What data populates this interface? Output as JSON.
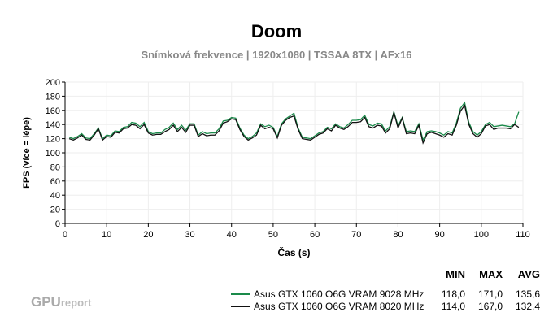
{
  "chart_data": {
    "type": "line",
    "title": "Doom",
    "subtitle": "Snímková frekvence | 1920x1080 | TSSAA 8TX | AFx16",
    "xlabel": "Čas (s)",
    "ylabel": "FPS (více = lépe)",
    "xlim": [
      0,
      110
    ],
    "ylim": [
      0,
      200
    ],
    "xticks": [
      0,
      10,
      20,
      30,
      40,
      50,
      60,
      70,
      80,
      90,
      100,
      110
    ],
    "yticks": [
      0,
      20,
      40,
      60,
      80,
      100,
      120,
      140,
      160,
      180,
      200
    ],
    "grid": true,
    "legend_placement": "bottom-right",
    "stat_headers": [
      "MIN",
      "MAX",
      "AVG"
    ],
    "series": [
      {
        "name": "Asus GTX 1060 O6G VRAM 9028 MHz",
        "color": "#1a8a4a",
        "min": "118,0",
        "max": "171,0",
        "avg": "135,6",
        "values": [
          122,
          120,
          123,
          127,
          121,
          120,
          127,
          135,
          120,
          125,
          124,
          131,
          130,
          136,
          137,
          143,
          142,
          137,
          143,
          130,
          127,
          128,
          128,
          133,
          136,
          142,
          133,
          139,
          132,
          141,
          141,
          125,
          130,
          127,
          128,
          128,
          134,
          145,
          146,
          150,
          149,
          135,
          125,
          120,
          123,
          128,
          141,
          137,
          139,
          136,
          123,
          141,
          148,
          152,
          156,
          135,
          122,
          121,
          120,
          124,
          128,
          130,
          136,
          134,
          141,
          137,
          135,
          140,
          146,
          146,
          147,
          153,
          140,
          138,
          142,
          141,
          131,
          137,
          158,
          138,
          150,
          130,
          131,
          130,
          141,
          118,
          130,
          131,
          130,
          128,
          125,
          130,
          128,
          142,
          163,
          171,
          143,
          130,
          125,
          130,
          140,
          143,
          137,
          138,
          139,
          138,
          137,
          141,
          158
        ]
      },
      {
        "name": "Asus GTX 1060 O6G VRAM 8020 MHz",
        "color": "#111111",
        "min": "114,0",
        "max": "167,0",
        "avg": "132,4",
        "values": [
          120,
          118,
          121,
          125,
          119,
          118,
          125,
          134,
          118,
          123,
          122,
          129,
          128,
          134,
          135,
          140,
          139,
          134,
          140,
          128,
          125,
          126,
          126,
          130,
          133,
          139,
          130,
          136,
          129,
          139,
          139,
          123,
          127,
          124,
          125,
          125,
          131,
          142,
          144,
          148,
          147,
          133,
          123,
          118,
          121,
          125,
          139,
          134,
          136,
          134,
          121,
          139,
          146,
          150,
          152,
          133,
          120,
          119,
          118,
          122,
          126,
          128,
          134,
          131,
          139,
          135,
          133,
          137,
          143,
          143,
          144,
          150,
          137,
          135,
          139,
          138,
          128,
          134,
          157,
          135,
          149,
          127,
          128,
          127,
          139,
          114,
          127,
          129,
          127,
          125,
          122,
          127,
          125,
          139,
          159,
          167,
          140,
          127,
          122,
          127,
          138,
          140,
          133,
          135,
          135,
          135,
          134,
          140,
          136
        ]
      }
    ]
  },
  "branding": {
    "logo_main": "GPU",
    "logo_sub": "report"
  }
}
